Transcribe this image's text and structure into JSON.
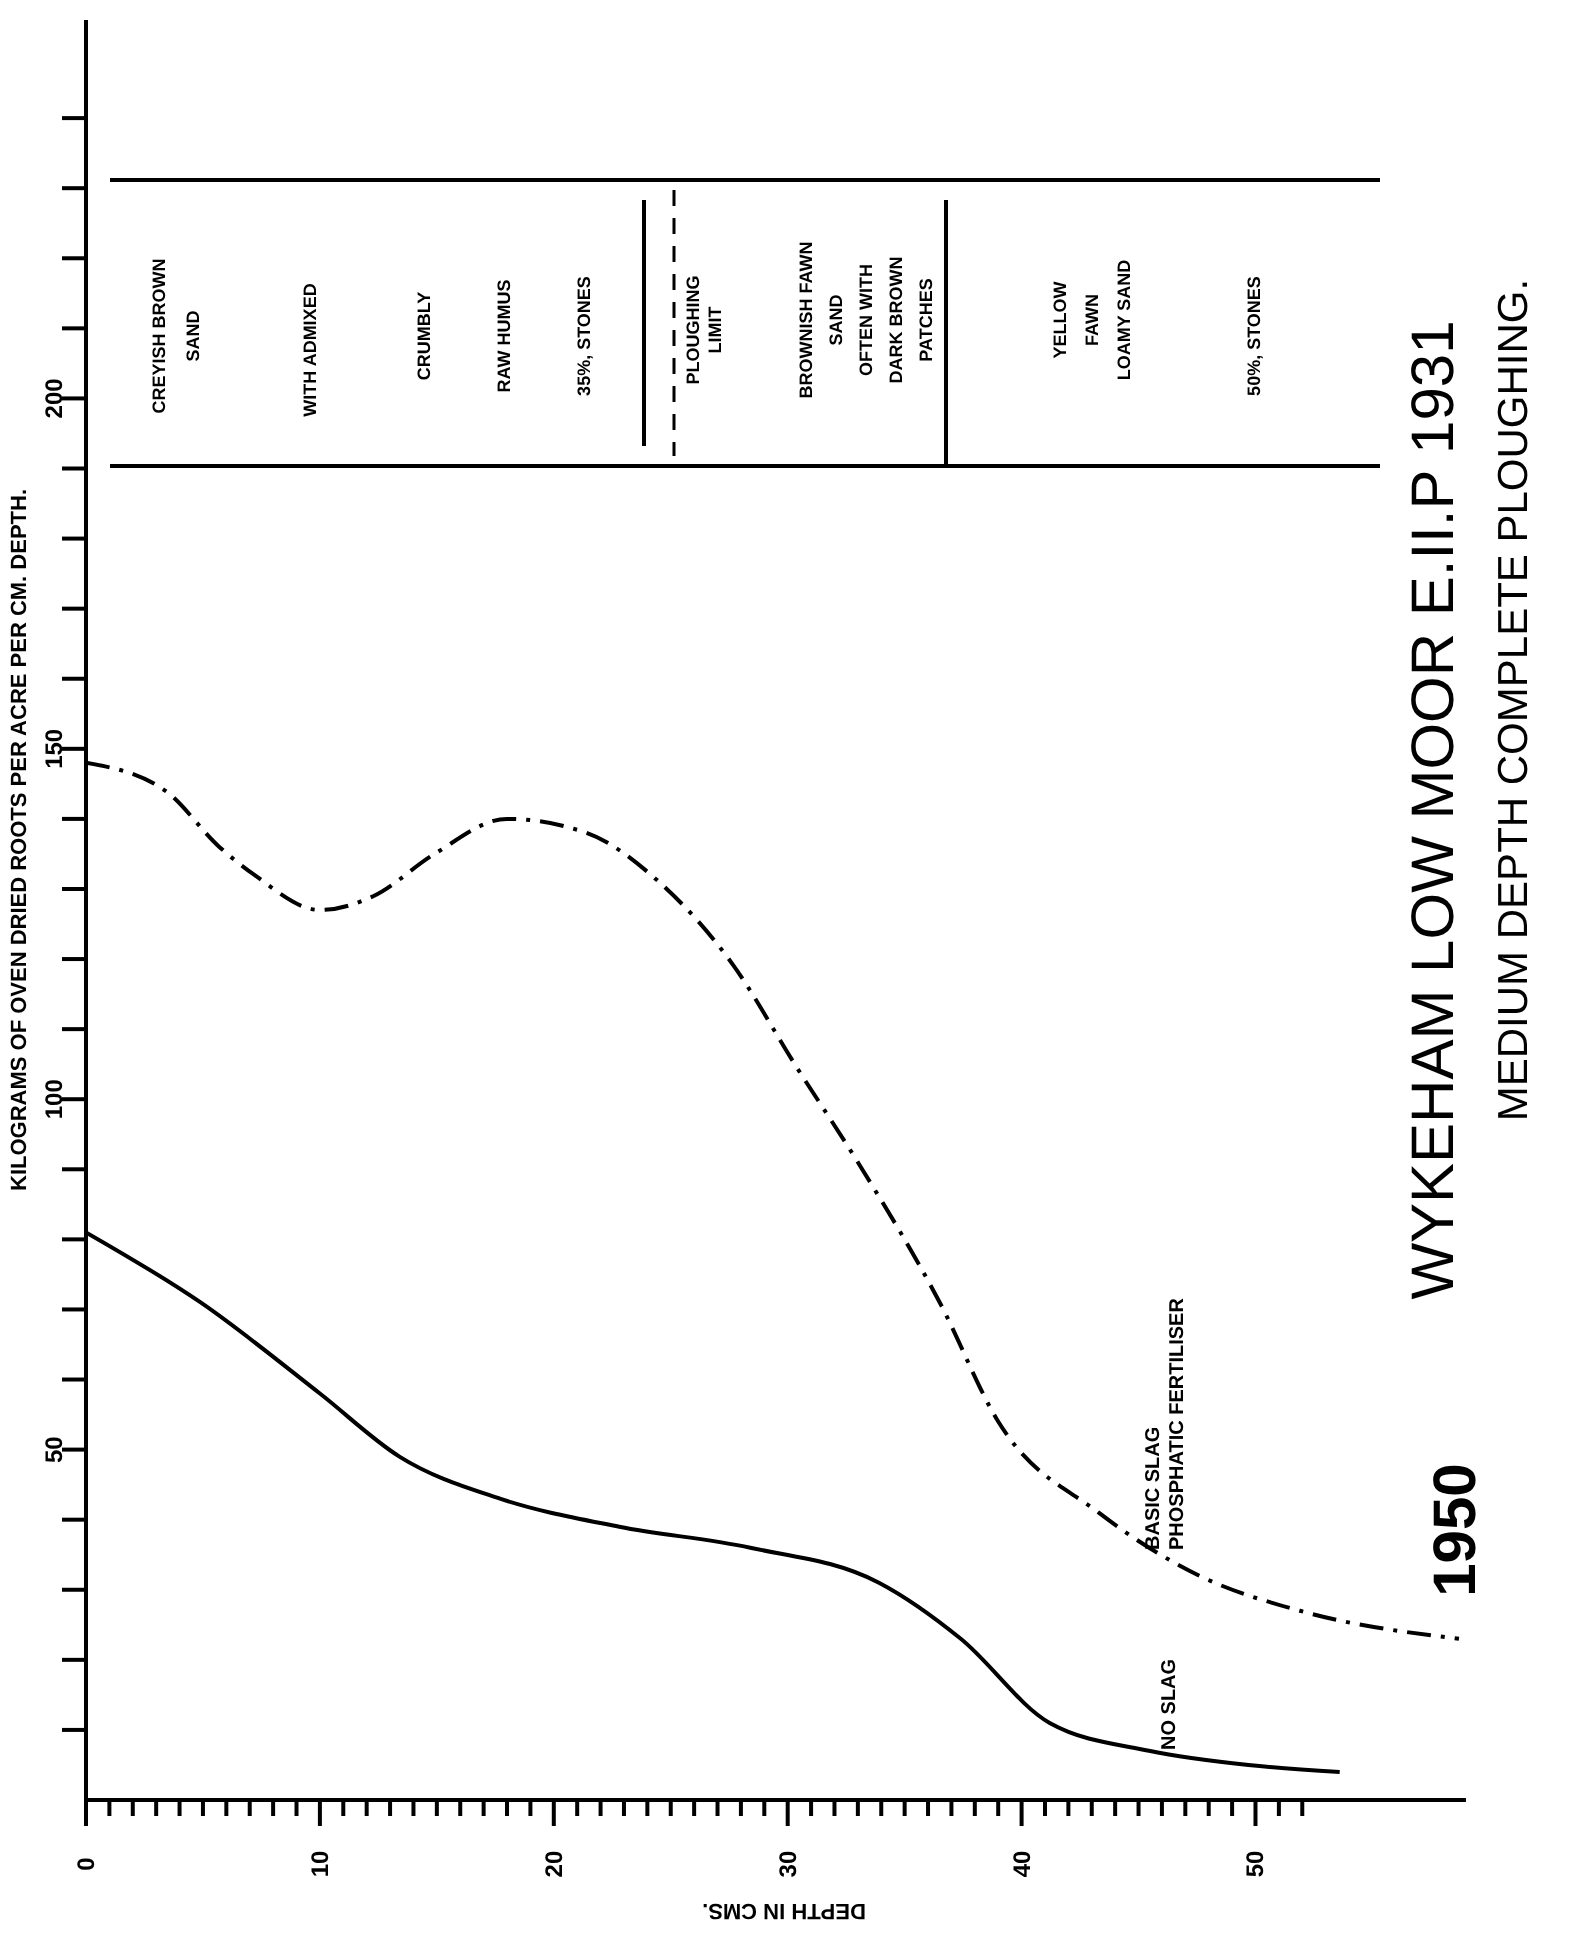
{
  "chart_data": {
    "type": "line",
    "title": "WYKEHAM LOW MOOR E.II.P 1931",
    "subtitle": "MEDIUM DEPTH COMPLETE PLOUGHING.",
    "xlabel": "DEPTH IN CMS.",
    "ylabel": "KILOGRAMS OF OVEN DRIED ROOTS PER ACRE PER CM. DEPTH.",
    "annotations": [
      "CREYISH BROWN\nSAND",
      "WITH ADMIXED",
      "CRUMBLY",
      "RAW HUMUS",
      "35%, STONES",
      "PLOUGHING\nLIMIT",
      "BROWNISH FAWN\nSAND\nOFTEN WITH\nDARK BROWN\nPATCHES",
      "YELLOW\nFAWN\nLOAMY SAND",
      "50%, STONES",
      "1950"
    ],
    "series": [
      {
        "name": "BASIC SLAG\nPHOSPHATIC FERTILISER",
        "color": "#000000",
        "line_style": "dashed",
        "x": [
          0,
          3.4,
          5.7,
          7.2,
          10,
          12.3,
          14.9,
          18,
          21.4,
          24.5,
          27.7,
          30.3,
          33,
          36.5,
          39,
          43.3,
          47.6,
          51.9,
          58.7
        ],
        "values": [
          148,
          144,
          136,
          132,
          127,
          129,
          135,
          140,
          138,
          131,
          119,
          105,
          91,
          71,
          54,
          41,
          32,
          27,
          23
        ]
      },
      {
        "name": "NO SLAG",
        "color": "#000000",
        "line_style": "solid",
        "x": [
          0,
          4.9,
          10,
          13.4,
          17.7,
          22.8,
          28.4,
          33.9,
          37.4,
          41.2,
          45.5,
          49.7,
          53.6
        ],
        "values": [
          81,
          71,
          58,
          49,
          43,
          39,
          36,
          31,
          23,
          11,
          7,
          5,
          4
        ]
      }
    ],
    "xlim": [
      0,
      59
    ],
    "xticks": [
      0,
      {
        "value": 1,
        "label": null
      },
      {
        "value": 2,
        "label": null
      },
      {
        "value": 3,
        "label": null
      },
      {
        "value": 4,
        "label": null
      },
      {
        "value": 5,
        "label": null
      },
      {
        "value": 6,
        "label": null
      },
      {
        "value": 7,
        "label": null
      },
      {
        "value": 8,
        "label": null
      },
      {
        "value": 9,
        "label": null
      },
      10,
      {
        "value": 11,
        "label": null
      },
      {
        "value": 12,
        "label": null
      },
      {
        "value": 13,
        "label": null
      },
      {
        "value": 14,
        "label": null
      },
      {
        "value": 15,
        "label": null
      },
      {
        "value": 16,
        "label": null
      },
      {
        "value": 17,
        "label": null
      },
      {
        "value": 18,
        "label": null
      },
      {
        "value": 19,
        "label": null
      },
      20,
      {
        "value": 21,
        "label": null
      },
      {
        "value": 22,
        "label": null
      },
      {
        "value": 23,
        "label": null
      },
      {
        "value": 24,
        "label": null
      },
      {
        "value": 25,
        "label": null
      },
      {
        "value": 26,
        "label": null
      },
      {
        "value": 27,
        "label": null
      },
      {
        "value": 28,
        "label": null
      },
      {
        "value": 29,
        "label": null
      },
      30,
      {
        "value": 31,
        "label": null
      },
      {
        "value": 32,
        "label": null
      },
      {
        "value": 33,
        "label": null
      },
      {
        "value": 34,
        "label": null
      },
      {
        "value": 35,
        "label": null
      },
      {
        "value": 36,
        "label": null
      },
      {
        "value": 37,
        "label": null
      },
      {
        "value": 38,
        "label": null
      },
      {
        "value": 39,
        "label": null
      },
      40,
      {
        "value": 41,
        "label": null
      },
      {
        "value": 42,
        "label": null
      },
      {
        "value": 43,
        "label": null
      },
      {
        "value": 44,
        "label": null
      },
      {
        "value": 45,
        "label": null
      },
      {
        "value": 46,
        "label": null
      },
      {
        "value": 47,
        "label": null
      },
      {
        "value": 48,
        "label": null
      },
      {
        "value": 49,
        "label": null
      },
      50,
      {
        "value": 51,
        "label": null
      },
      {
        "value": 52,
        "label": null
      }
    ],
    "ylim": [
      0,
      254
    ],
    "yticks": [
      {
        "value": 10,
        "label": null
      },
      {
        "value": 20,
        "label": null
      },
      {
        "value": 30,
        "label": null
      },
      {
        "value": 40,
        "label": null
      },
      50,
      {
        "value": 60,
        "label": null
      },
      {
        "value": 70,
        "label": null
      },
      {
        "value": 80,
        "label": null
      },
      {
        "value": 90,
        "label": null
      },
      100,
      {
        "value": 110,
        "label": null
      },
      {
        "value": 120,
        "label": null
      },
      {
        "value": 130,
        "label": null
      },
      {
        "value": 140,
        "label": null
      },
      150,
      {
        "value": 160,
        "label": null
      },
      {
        "value": 170,
        "label": null
      },
      {
        "value": 180,
        "label": null
      },
      {
        "value": 190,
        "label": null
      },
      200,
      {
        "value": 210,
        "label": null
      },
      {
        "value": 220,
        "label": null
      },
      {
        "value": 230,
        "label": null
      },
      {
        "value": 240,
        "label": null
      }
    ],
    "marker": "none"
  }
}
